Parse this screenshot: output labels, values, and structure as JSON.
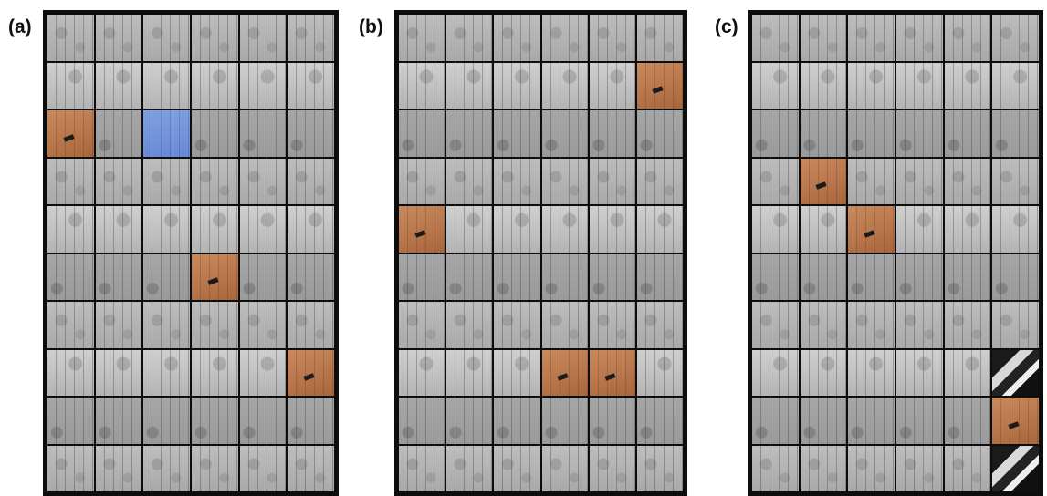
{
  "figure": {
    "panels": [
      {
        "label": "(a)",
        "rows": 10,
        "cols": 6,
        "highlights": [
          {
            "row": 2,
            "col": 0,
            "color": "orange"
          },
          {
            "row": 2,
            "col": 2,
            "color": "blue"
          },
          {
            "row": 5,
            "col": 3,
            "color": "orange"
          },
          {
            "row": 7,
            "col": 5,
            "color": "orange"
          }
        ]
      },
      {
        "label": "(b)",
        "rows": 10,
        "cols": 6,
        "highlights": [
          {
            "row": 1,
            "col": 5,
            "color": "orange"
          },
          {
            "row": 4,
            "col": 0,
            "color": "orange"
          },
          {
            "row": 7,
            "col": 3,
            "color": "orange"
          },
          {
            "row": 7,
            "col": 4,
            "color": "orange"
          }
        ]
      },
      {
        "label": "(c)",
        "rows": 10,
        "cols": 6,
        "highlights": [
          {
            "row": 3,
            "col": 1,
            "color": "orange"
          },
          {
            "row": 4,
            "col": 2,
            "color": "orange"
          },
          {
            "row": 7,
            "col": 5,
            "color": "dark"
          },
          {
            "row": 8,
            "col": 5,
            "color": "orange"
          },
          {
            "row": 9,
            "col": 5,
            "color": "dark"
          }
        ]
      }
    ],
    "colors": {
      "orange": "#b87549",
      "blue": "#7292dc",
      "frame": "#0d0d0d",
      "cell": "#b3b3b3"
    }
  }
}
